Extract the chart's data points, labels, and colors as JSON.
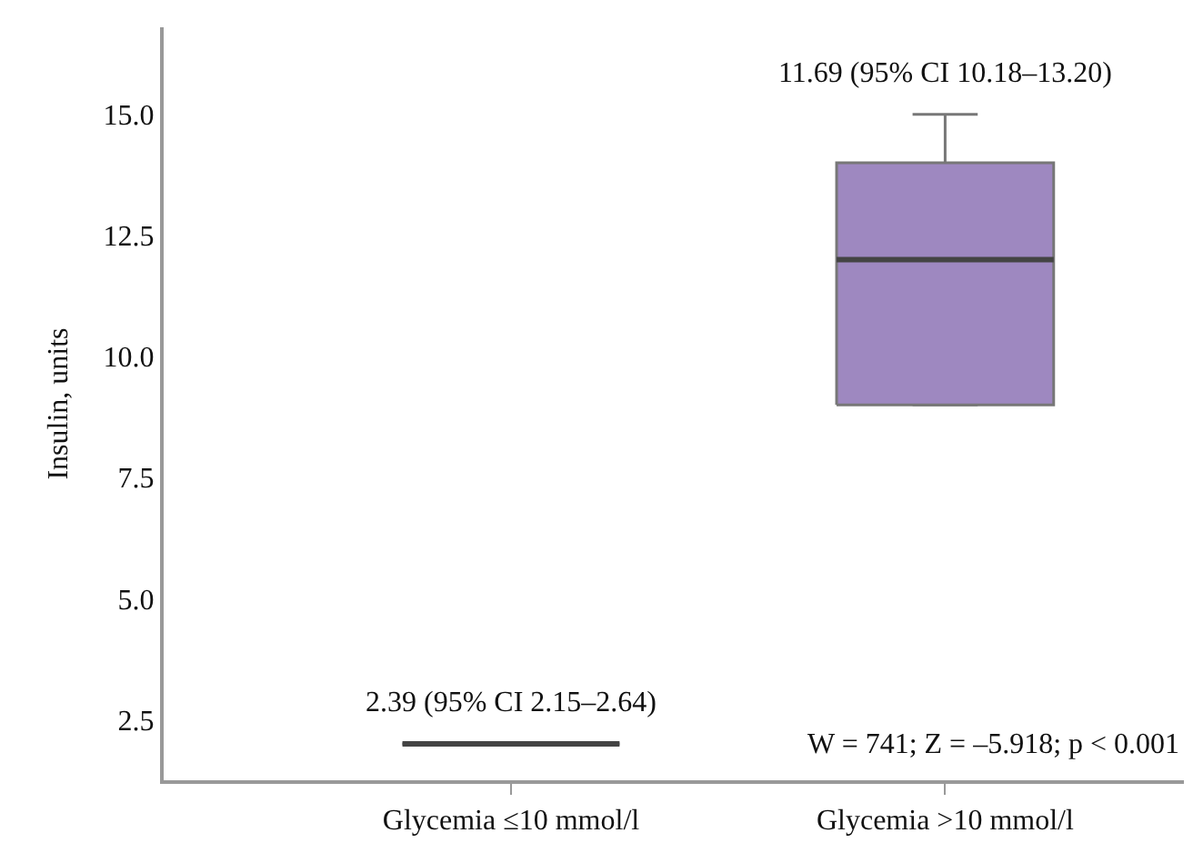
{
  "chart_data": {
    "type": "box",
    "ylabel": "Insulin, units",
    "categories": [
      "Glycemia ≤10 mmol/l",
      "Glycemia >10 mmol/l"
    ],
    "boxes": [
      {
        "low": 2.0,
        "q1": 2.0,
        "median": 2.0,
        "q3": 2.0,
        "high": 2.0
      },
      {
        "low": 9.0,
        "q1": 9.0,
        "median": 12.0,
        "q3": 14.0,
        "high": 15.0
      }
    ],
    "colors": [
      "#444444",
      "#9e88c0"
    ],
    "ylim": [
      1.25,
      16.8
    ],
    "yticks": [
      {
        "value": 2.5,
        "label": "2.5"
      },
      {
        "value": 5.0,
        "label": "5.0"
      },
      {
        "value": 7.5,
        "label": "7.5"
      },
      {
        "value": 10.0,
        "label": "10.0"
      },
      {
        "value": 12.5,
        "label": "12.5"
      },
      {
        "value": 15.0,
        "label": "15.0"
      }
    ],
    "annotations": [
      "2.39 (95% CI 2.15–2.64)",
      "11.69 (95% CI 10.18–13.20)",
      "W = 741; Z = –5.918; p < 0.001"
    ]
  }
}
